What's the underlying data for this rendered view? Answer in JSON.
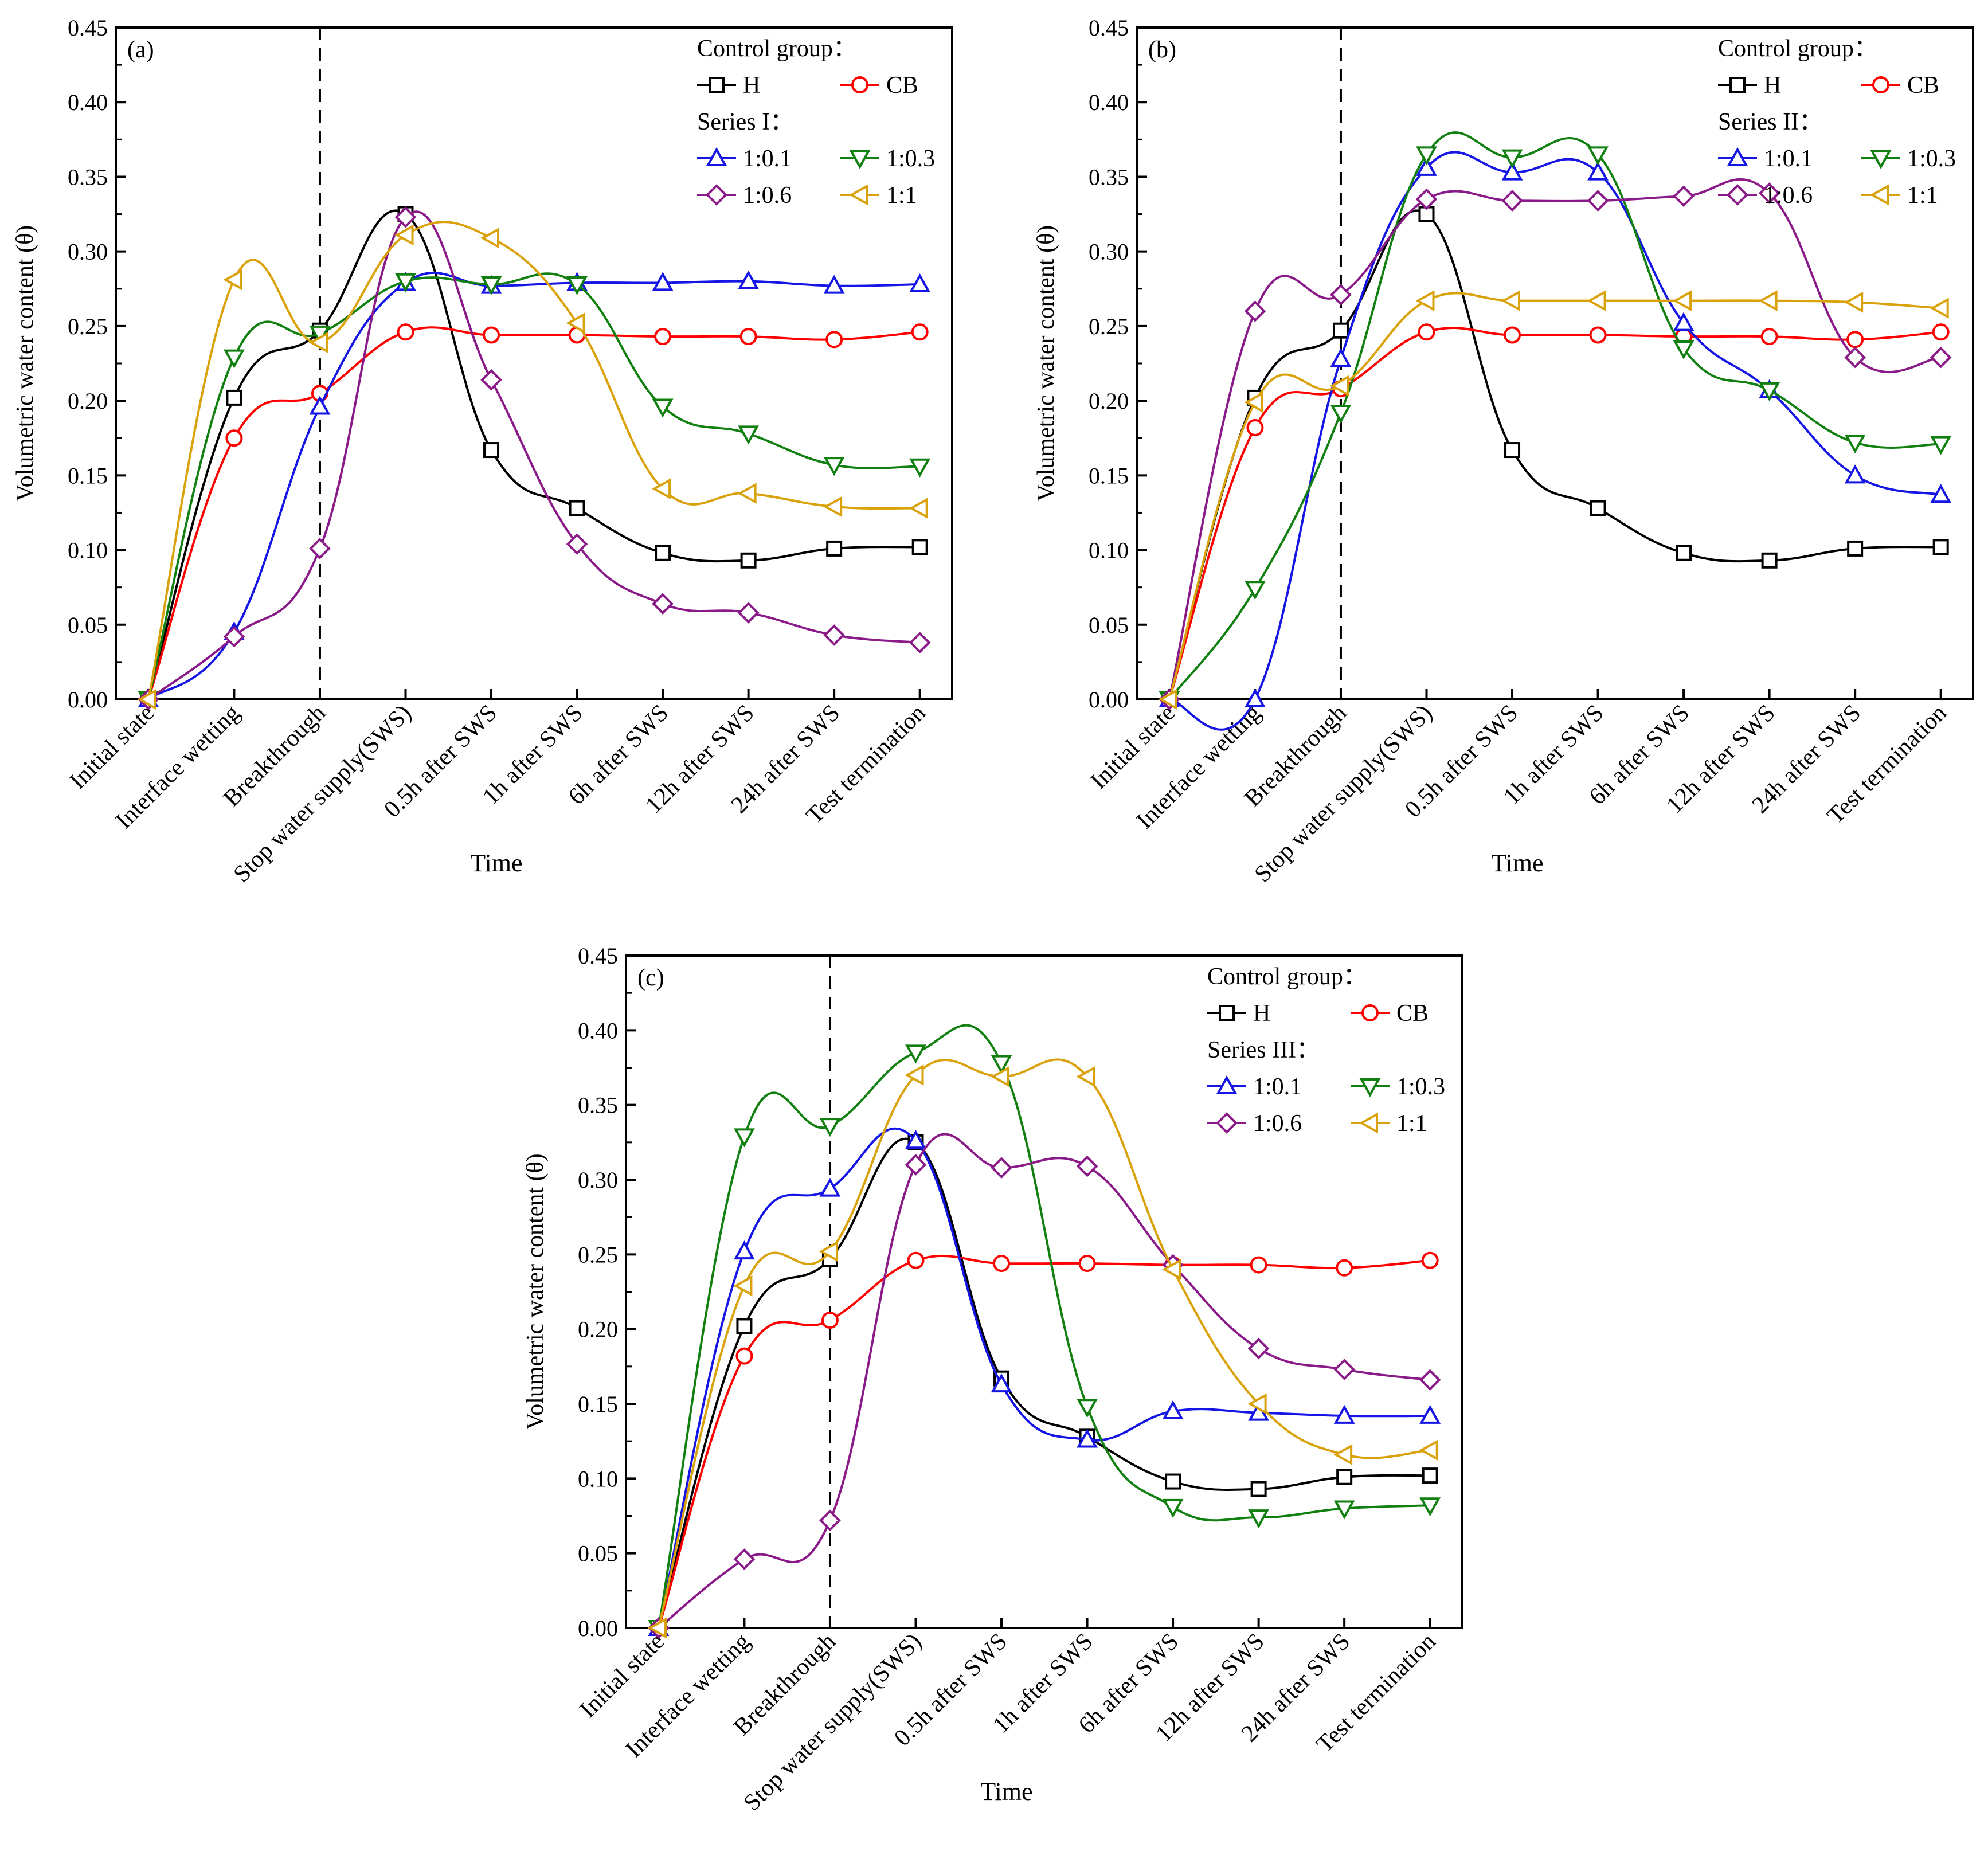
{
  "colors": {
    "H": "#000000",
    "CB": "#ff0000",
    "1:0.1": "#1515e6",
    "1:0.3": "#118011",
    "1:0.6": "#8b1a89",
    "1:1": "#daa20a"
  },
  "chart_data": [
    {
      "type": "line",
      "panel_label": "(a)",
      "xlabel": "Time",
      "ylabel": "Volumetric water content (θ)",
      "ylim": [
        0,
        0.45
      ],
      "yticks": [
        "0.00",
        "0.05",
        "0.10",
        "0.15",
        "0.20",
        "0.25",
        "0.30",
        "0.35",
        "0.40",
        "0.45"
      ],
      "categories": [
        "Initial state",
        "Interface wetting",
        "Breakthrough",
        "Stop water supply(SWS)",
        "0.5h after SWS",
        "1h after SWS",
        "6h after SWS",
        "12h after SWS",
        "24h after SWS",
        "Test termination"
      ],
      "divider_after_category": "Breakthrough",
      "legend": {
        "control_title": "Control group：",
        "series_title": "Series I：",
        "position": "top-right"
      },
      "series": [
        {
          "name": "H",
          "marker": "square",
          "values": [
            0.0,
            0.202,
            0.247,
            0.325,
            0.167,
            0.128,
            0.098,
            0.093,
            0.101,
            0.102
          ]
        },
        {
          "name": "CB",
          "marker": "circle",
          "values": [
            0.0,
            0.175,
            0.205,
            0.246,
            0.244,
            0.244,
            0.243,
            0.243,
            0.241,
            0.246
          ]
        },
        {
          "name": "1:0.1",
          "marker": "triangle-up",
          "values": [
            0.0,
            0.045,
            0.196,
            0.279,
            0.277,
            0.279,
            0.279,
            0.28,
            0.277,
            0.278
          ]
        },
        {
          "name": "1:0.3",
          "marker": "triangle-down",
          "values": [
            0.0,
            0.229,
            0.245,
            0.28,
            0.278,
            0.278,
            0.196,
            0.178,
            0.157,
            0.156
          ]
        },
        {
          "name": "1:0.6",
          "marker": "diamond",
          "values": [
            0.0,
            0.042,
            0.101,
            0.323,
            0.214,
            0.104,
            0.064,
            0.058,
            0.043,
            0.038
          ]
        },
        {
          "name": "1:1",
          "marker": "triangle-left",
          "values": [
            0.0,
            0.281,
            0.239,
            0.311,
            0.309,
            0.252,
            0.141,
            0.138,
            0.129,
            0.128
          ]
        }
      ]
    },
    {
      "type": "line",
      "panel_label": "(b)",
      "xlabel": "Time",
      "ylabel": "Volumetric water content (θ)",
      "ylim": [
        0,
        0.45
      ],
      "yticks": [
        "0.00",
        "0.05",
        "0.10",
        "0.15",
        "0.20",
        "0.25",
        "0.30",
        "0.35",
        "0.40",
        "0.45"
      ],
      "categories": [
        "Initial state",
        "Interface wetting",
        "Breakthrough",
        "Stop water supply(SWS)",
        "0.5h after SWS",
        "1h after SWS",
        "6h after SWS",
        "12h after SWS",
        "24h after SWS",
        "Test termination"
      ],
      "divider_after_category": "Breakthrough",
      "legend": {
        "control_title": "Control group：",
        "series_title": "Series II：",
        "position": "top-right"
      },
      "series": [
        {
          "name": "H",
          "marker": "square",
          "values": [
            0.0,
            0.202,
            0.247,
            0.325,
            0.167,
            0.128,
            0.098,
            0.093,
            0.101,
            0.102
          ]
        },
        {
          "name": "CB",
          "marker": "circle",
          "values": [
            0.0,
            0.182,
            0.208,
            0.246,
            0.244,
            0.244,
            0.243,
            0.243,
            0.241,
            0.246
          ]
        },
        {
          "name": "1:0.1",
          "marker": "triangle-up",
          "values": [
            0.0,
            0.0,
            0.228,
            0.356,
            0.353,
            0.353,
            0.252,
            0.207,
            0.15,
            0.137
          ]
        },
        {
          "name": "1:0.3",
          "marker": "triangle-down",
          "values": [
            0.0,
            0.074,
            0.192,
            0.365,
            0.363,
            0.365,
            0.235,
            0.207,
            0.172,
            0.171
          ]
        },
        {
          "name": "1:0.6",
          "marker": "diamond",
          "values": [
            0.0,
            0.26,
            0.271,
            0.335,
            0.334,
            0.334,
            0.337,
            0.339,
            0.229,
            0.229
          ]
        },
        {
          "name": "1:1",
          "marker": "triangle-left",
          "values": [
            0.0,
            0.199,
            0.21,
            0.267,
            0.267,
            0.267,
            0.267,
            0.267,
            0.266,
            0.262
          ]
        }
      ]
    },
    {
      "type": "line",
      "panel_label": "(c)",
      "xlabel": "Time",
      "ylabel": "Volumetric water content (θ)",
      "ylim": [
        0,
        0.45
      ],
      "yticks": [
        "0.00",
        "0.05",
        "0.10",
        "0.15",
        "0.20",
        "0.25",
        "0.30",
        "0.35",
        "0.40",
        "0.45"
      ],
      "categories": [
        "Initial state",
        "Interface wetting",
        "Breakthrough",
        "Stop water supply(SWS)",
        "0.5h after SWS",
        "1h after SWS",
        "6h after SWS",
        "12h after SWS",
        "24h after SWS",
        "Test termination"
      ],
      "divider_after_category": "Breakthrough",
      "legend": {
        "control_title": "Control group：",
        "series_title": "Series III：",
        "position": "top-right"
      },
      "series": [
        {
          "name": "H",
          "marker": "square",
          "values": [
            0.0,
            0.202,
            0.247,
            0.325,
            0.167,
            0.128,
            0.098,
            0.093,
            0.101,
            0.102
          ]
        },
        {
          "name": "CB",
          "marker": "circle",
          "values": [
            0.0,
            0.182,
            0.206,
            0.246,
            0.244,
            0.244,
            0.243,
            0.243,
            0.241,
            0.246
          ]
        },
        {
          "name": "1:0.1",
          "marker": "triangle-up",
          "values": [
            0.0,
            0.252,
            0.294,
            0.326,
            0.163,
            0.126,
            0.145,
            0.144,
            0.142,
            0.142
          ]
        },
        {
          "name": "1:0.3",
          "marker": "triangle-down",
          "values": [
            0.0,
            0.329,
            0.336,
            0.385,
            0.378,
            0.148,
            0.081,
            0.074,
            0.08,
            0.082
          ]
        },
        {
          "name": "1:0.6",
          "marker": "diamond",
          "values": [
            0.0,
            0.046,
            0.072,
            0.31,
            0.308,
            0.309,
            0.243,
            0.187,
            0.173,
            0.166
          ]
        },
        {
          "name": "1:1",
          "marker": "triangle-left",
          "values": [
            0.0,
            0.229,
            0.252,
            0.37,
            0.369,
            0.369,
            0.24,
            0.15,
            0.116,
            0.119
          ]
        }
      ]
    }
  ]
}
